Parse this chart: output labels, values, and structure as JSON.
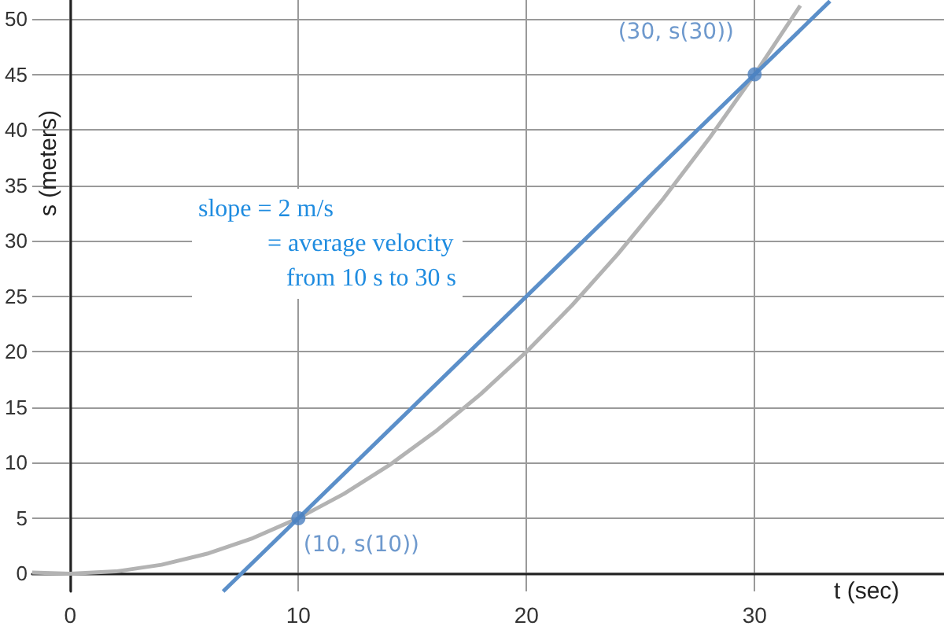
{
  "chart_data": {
    "type": "line",
    "xlabel": "t (sec)",
    "ylabel": "s (meters)",
    "xlim": [
      -1.67,
      38.3
    ],
    "ylim": [
      -1.6,
      51.7
    ],
    "xticks": [
      0,
      10,
      20,
      30
    ],
    "yticks": [
      0,
      5,
      10,
      15,
      20,
      25,
      30,
      35,
      40,
      45,
      50
    ],
    "grid": true,
    "series": [
      {
        "color": "#b3b3b3",
        "marker": "none",
        "x": [
          -1.67,
          0,
          2,
          4,
          6,
          8,
          10,
          12,
          14,
          16,
          18,
          20,
          22,
          24,
          26,
          28,
          30,
          32
        ],
        "values": [
          0.1,
          0,
          0.2,
          0.8,
          1.8,
          3.2,
          5,
          7.2,
          9.8,
          12.8,
          16.2,
          20,
          24.2,
          28.8,
          33.8,
          39.2,
          45,
          51.2
        ]
      },
      {
        "color": "#5b8fc9",
        "marker": "none",
        "x": [
          6.7,
          33.3
        ],
        "values": [
          -1.6,
          51.6
        ]
      },
      {
        "type": "scatter",
        "color": "#4a7fc0",
        "marker": "circle",
        "x": [
          10,
          30
        ],
        "values": [
          5,
          45
        ]
      }
    ],
    "annotations": [
      {
        "text": "(10, s(10))",
        "x": 10,
        "y": 5
      },
      {
        "text": "(30, s(30))",
        "x": 30,
        "y": 45
      },
      "slope = 2 m/s\n           = average velocity\n              from 10 s to 30 s"
    ]
  }
}
